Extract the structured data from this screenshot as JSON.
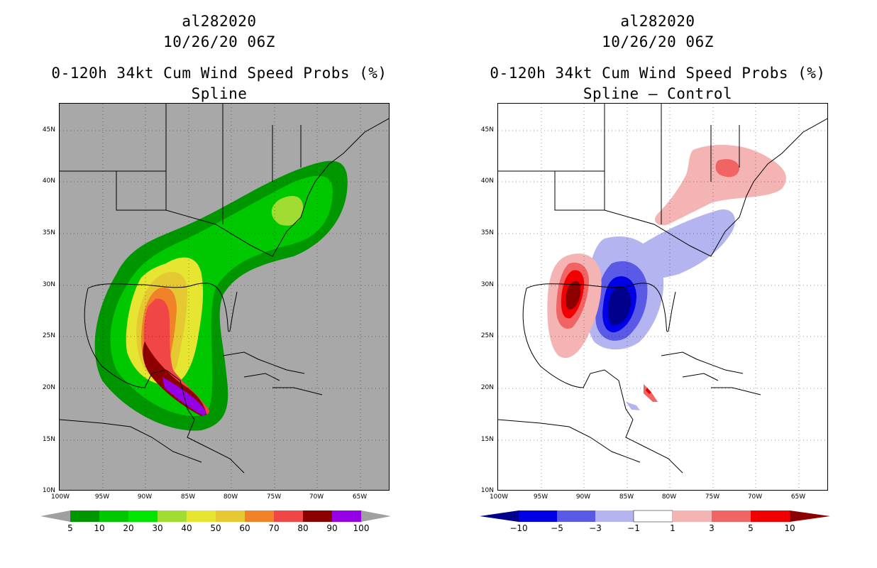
{
  "left_panel": {
    "storm_id": "al282020",
    "valid_time": "10/26/20 06Z",
    "product": "0-120h 34kt Cum Wind Speed Probs (%)",
    "subtitle": "Spline",
    "colorbar": {
      "labels": [
        "5",
        "10",
        "20",
        "30",
        "40",
        "50",
        "60",
        "70",
        "80",
        "90",
        "100"
      ],
      "colors": [
        "#009600",
        "#00c800",
        "#00e600",
        "#a0dc32",
        "#e6e632",
        "#e6c832",
        "#e6a028",
        "#f08228",
        "#f04646",
        "#8c0000",
        "#9600e6"
      ],
      "under_color": "#a0a0a0",
      "over_color": "#a0a0a0"
    },
    "map_background": "#a8a8a8"
  },
  "right_panel": {
    "storm_id": "al282020",
    "valid_time": "10/26/20 06Z",
    "product": "0-120h 34kt Cum Wind Speed Probs (%)",
    "subtitle": "Spline – Control",
    "colorbar": {
      "labels": [
        "−10",
        "−5",
        "−3",
        "−1",
        "1",
        "3",
        "5",
        "10"
      ],
      "colors": [
        "#0000e6",
        "#5a5ae6",
        "#b4b4f0",
        "#ffffff",
        "#f5b4b4",
        "#f06464",
        "#f00000"
      ],
      "under_color": "#00008c",
      "over_color": "#8c0000"
    },
    "map_background": "#ffffff"
  },
  "axes": {
    "lat_labels": [
      "45N",
      "40N",
      "35N",
      "30N",
      "25N",
      "20N",
      "15N",
      "10N"
    ],
    "lat_values": [
      45,
      40,
      35,
      30,
      25,
      20,
      15,
      10
    ],
    "lon_labels": [
      "100W",
      "95W",
      "90W",
      "85W",
      "80W",
      "75W",
      "70W",
      "65W"
    ],
    "lon_values": [
      -100,
      -95,
      -90,
      -85,
      -80,
      -75,
      -70,
      -65
    ],
    "lat_range": [
      10,
      47.5
    ],
    "lon_range": [
      -100,
      -61.5
    ]
  }
}
